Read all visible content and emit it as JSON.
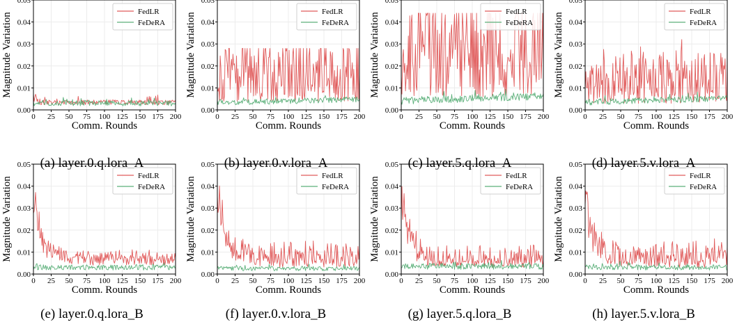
{
  "figure": {
    "panels": [
      {
        "caption": "(a) layer.0.q.lora_A",
        "kind": "flat",
        "fed_base": 0.003,
        "fed_amp": 0.0022,
        "dera_base": 0.003,
        "peak": 0.0078
      },
      {
        "caption": "(b) layer.0.v.lora_A",
        "kind": "rise",
        "fed_base": 0.004,
        "fed_amp": 0.016,
        "dera_base": 0.0032,
        "peak": 0.028
      },
      {
        "caption": "(c) layer.5.q.lora_A",
        "kind": "rise",
        "fed_base": 0.006,
        "fed_amp": 0.024,
        "dera_base": 0.0042,
        "peak": 0.044
      },
      {
        "caption": "(d) layer.5.v.lora_A",
        "kind": "rise",
        "fed_base": 0.003,
        "fed_amp": 0.013,
        "dera_base": 0.0035,
        "peak": 0.033
      },
      {
        "caption": "(e) layer.0.q.lora_B",
        "kind": "decay",
        "fed_start": 0.038,
        "fed_end": 0.007,
        "fed_noise": 0.0025,
        "dera_base": 0.003,
        "peak": 0.039
      },
      {
        "caption": "(f) layer.0.v.lora_B",
        "kind": "decay",
        "fed_start": 0.04,
        "fed_end": 0.005,
        "fed_noise": 0.006,
        "dera_base": 0.0025,
        "peak": 0.042
      },
      {
        "caption": "(g) layer.5.q.lora_B",
        "kind": "decay",
        "fed_start": 0.038,
        "fed_end": 0.005,
        "fed_noise": 0.005,
        "dera_base": 0.0035,
        "peak": 0.04
      },
      {
        "caption": "(h) layer.5.v.lora_B",
        "kind": "decay",
        "fed_start": 0.038,
        "fed_end": 0.005,
        "fed_noise": 0.0065,
        "dera_base": 0.003,
        "peak": 0.04
      }
    ]
  },
  "chart_data": {
    "type": "line",
    "xlabel": "Comm. Rounds",
    "ylabel": "Magnitude Variation",
    "xlim": [
      0,
      200
    ],
    "ylim": [
      0,
      0.05
    ],
    "xticks": [
      "0",
      "25",
      "50",
      "75",
      "100",
      "125",
      "150",
      "175",
      "200"
    ],
    "yticks": [
      "0.00",
      "0.01",
      "0.02",
      "0.03",
      "0.04",
      "0.05"
    ],
    "grid": true,
    "legend": "top-right",
    "series": [
      {
        "name": "FedLR",
        "color": "#e05a5a"
      },
      {
        "name": "FeDeRA",
        "color": "#5cb07a"
      }
    ]
  }
}
